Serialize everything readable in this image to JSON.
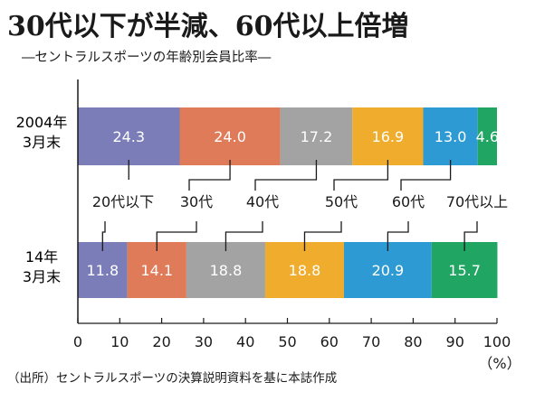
{
  "header": {
    "title": "30代以下が半減、60代以上倍増",
    "subtitle": "―セントラルスポーツの年齢別会員比率―"
  },
  "footnote": "（出所）セントラルスポーツの決算説明資料を基に本誌作成",
  "chart_data": {
    "type": "bar",
    "orientation": "horizontal",
    "stacked": true,
    "title": "30代以下が半減、60代以上倍増",
    "subtitle": "―セントラルスポーツの年齢別会員比率―",
    "categories": [
      {
        "label_lines": [
          "2004年",
          "3月末"
        ]
      },
      {
        "label_lines": [
          "14年",
          "3月末"
        ]
      }
    ],
    "series": [
      {
        "name": "20代以下",
        "color": "#7b7db8",
        "values": [
          24.3,
          11.8
        ]
      },
      {
        "name": "30代",
        "color": "#e07b5a",
        "values": [
          24.0,
          14.1
        ]
      },
      {
        "name": "40代",
        "color": "#a3a3a3",
        "values": [
          17.2,
          18.8
        ]
      },
      {
        "name": "50代",
        "color": "#f0ac2c",
        "values": [
          16.9,
          18.8
        ]
      },
      {
        "name": "60代",
        "color": "#2e9ad4",
        "values": [
          13.0,
          20.9
        ]
      },
      {
        "name": "70代以上",
        "color": "#20a662",
        "values": [
          4.6,
          15.7
        ]
      }
    ],
    "xlim": [
      0,
      100
    ],
    "xticks": [
      "0",
      "10",
      "20",
      "30",
      "40",
      "50",
      "60",
      "70",
      "80",
      "90",
      "100"
    ],
    "xunit": "（%）",
    "grid": false,
    "legend": "callouts-between-bars"
  }
}
